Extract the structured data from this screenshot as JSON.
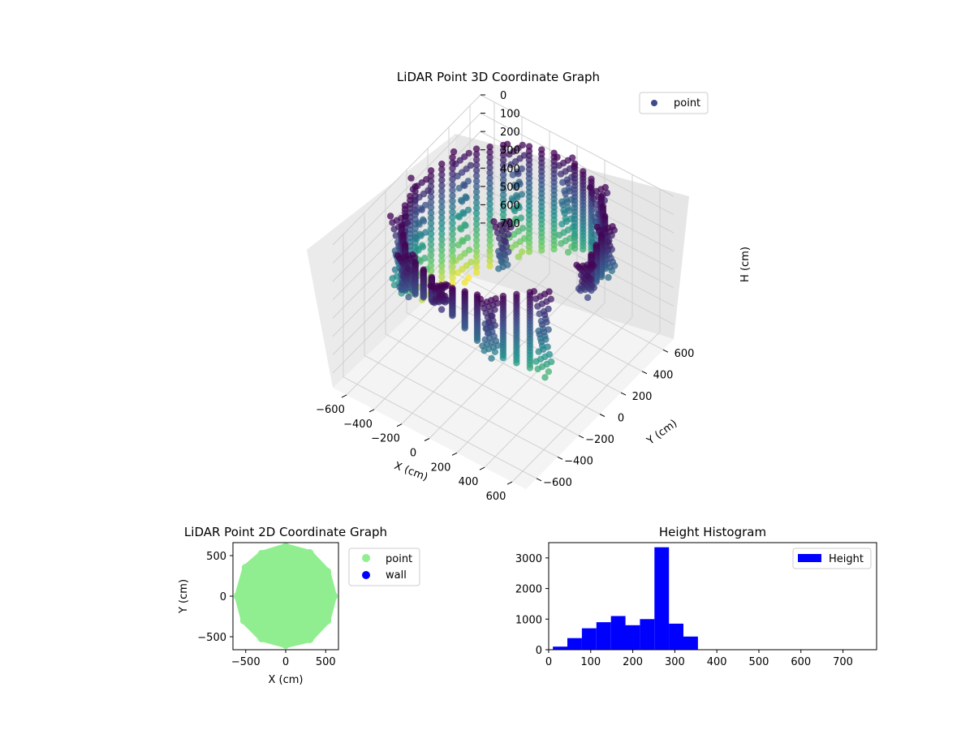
{
  "chart_data": [
    {
      "id": "chart3d",
      "type": "scatter",
      "title": "LiDAR Point 3D Coordinate Graph",
      "xlabel": "X (cm)",
      "ylabel": "Y (cm)",
      "zlabel": "H (cm)",
      "xlim": [
        -700,
        700
      ],
      "ylim": [
        -700,
        700
      ],
      "zlim": [
        0,
        780
      ],
      "z_inverted": true,
      "xticks": [
        "−600",
        "−400",
        "−200",
        "0",
        "200",
        "400",
        "600"
      ],
      "yticks": [
        "−600",
        "−400",
        "−200",
        "0",
        "200",
        "400",
        "600"
      ],
      "zticks": [
        "0",
        "100",
        "200",
        "300",
        "400",
        "500",
        "600",
        "700"
      ],
      "colormap": "viridis",
      "series": [
        {
          "name": "point",
          "color": "#3f4a8a",
          "values": [
            {
              "x": 600,
              "y": 0,
              "h": 150
            },
            {
              "x": 520,
              "y": 300,
              "h": 250
            },
            {
              "x": 300,
              "y": 520,
              "h": 350
            },
            {
              "x": 0,
              "y": 600,
              "h": 500
            },
            {
              "x": -300,
              "y": 520,
              "h": 600
            },
            {
              "x": -520,
              "y": 300,
              "h": 700
            },
            {
              "x": -600,
              "y": 0,
              "h": 650
            },
            {
              "x": -520,
              "y": -300,
              "h": 400
            },
            {
              "x": -300,
              "y": -520,
              "h": 200
            },
            {
              "x": 0,
              "y": -600,
              "h": 100
            },
            {
              "x": 300,
              "y": -520,
              "h": 300
            },
            {
              "x": 520,
              "y": -300,
              "h": 450
            },
            {
              "x": 0,
              "y": 0,
              "h": 260
            }
          ]
        }
      ],
      "legend": {
        "position": "top-right",
        "entries": [
          {
            "label": "point",
            "color": "#3f4a8a"
          }
        ]
      },
      "grid": true
    },
    {
      "id": "chart2d",
      "type": "scatter",
      "title": "LiDAR Point 2D Coordinate Graph",
      "xlabel": "X (cm)",
      "ylabel": "Y (cm)",
      "xlim": [
        -660,
        660
      ],
      "ylim": [
        -660,
        660
      ],
      "xticks": [
        "−500",
        "0",
        "500"
      ],
      "yticks": [
        "500",
        "0",
        "−500"
      ],
      "series": [
        {
          "name": "point",
          "color": "#90ee90",
          "values": [
            {
              "x": 600,
              "y": 0
            },
            {
              "x": 520,
              "y": 300
            },
            {
              "x": 300,
              "y": 530
            },
            {
              "x": 0,
              "y": 610
            },
            {
              "x": -300,
              "y": 520
            },
            {
              "x": -500,
              "y": 350
            },
            {
              "x": -600,
              "y": 0
            },
            {
              "x": -520,
              "y": -300
            },
            {
              "x": -300,
              "y": -520
            },
            {
              "x": 0,
              "y": -600
            },
            {
              "x": 300,
              "y": -530
            },
            {
              "x": 520,
              "y": -300
            },
            {
              "x": 0,
              "y": 0
            }
          ]
        },
        {
          "name": "wall",
          "color": "#0000ff",
          "values": []
        }
      ],
      "legend": {
        "position": "outside-right",
        "entries": [
          {
            "label": "point",
            "color": "#90ee90"
          },
          {
            "label": "wall",
            "color": "#0000ff"
          }
        ]
      },
      "grid": false
    },
    {
      "id": "hist",
      "type": "bar",
      "title": "Height Histogram",
      "xlim": [
        0,
        780
      ],
      "ylim": [
        0,
        3500
      ],
      "xticks": [
        "0",
        "100",
        "200",
        "300",
        "400",
        "500",
        "600",
        "700"
      ],
      "yticks": [
        "0",
        "1000",
        "2000",
        "3000"
      ],
      "bin_edges": [
        10,
        44.5,
        79,
        113.5,
        148,
        182.5,
        217,
        251.5,
        286,
        320.5,
        355
      ],
      "values": [
        100,
        380,
        700,
        900,
        1100,
        800,
        1000,
        3350,
        850,
        430
      ],
      "series": [
        {
          "name": "Height",
          "color": "#0000ff"
        }
      ],
      "legend": {
        "position": "top-right",
        "entries": [
          {
            "label": "Height",
            "color": "#0000ff"
          }
        ]
      },
      "grid": false
    }
  ]
}
